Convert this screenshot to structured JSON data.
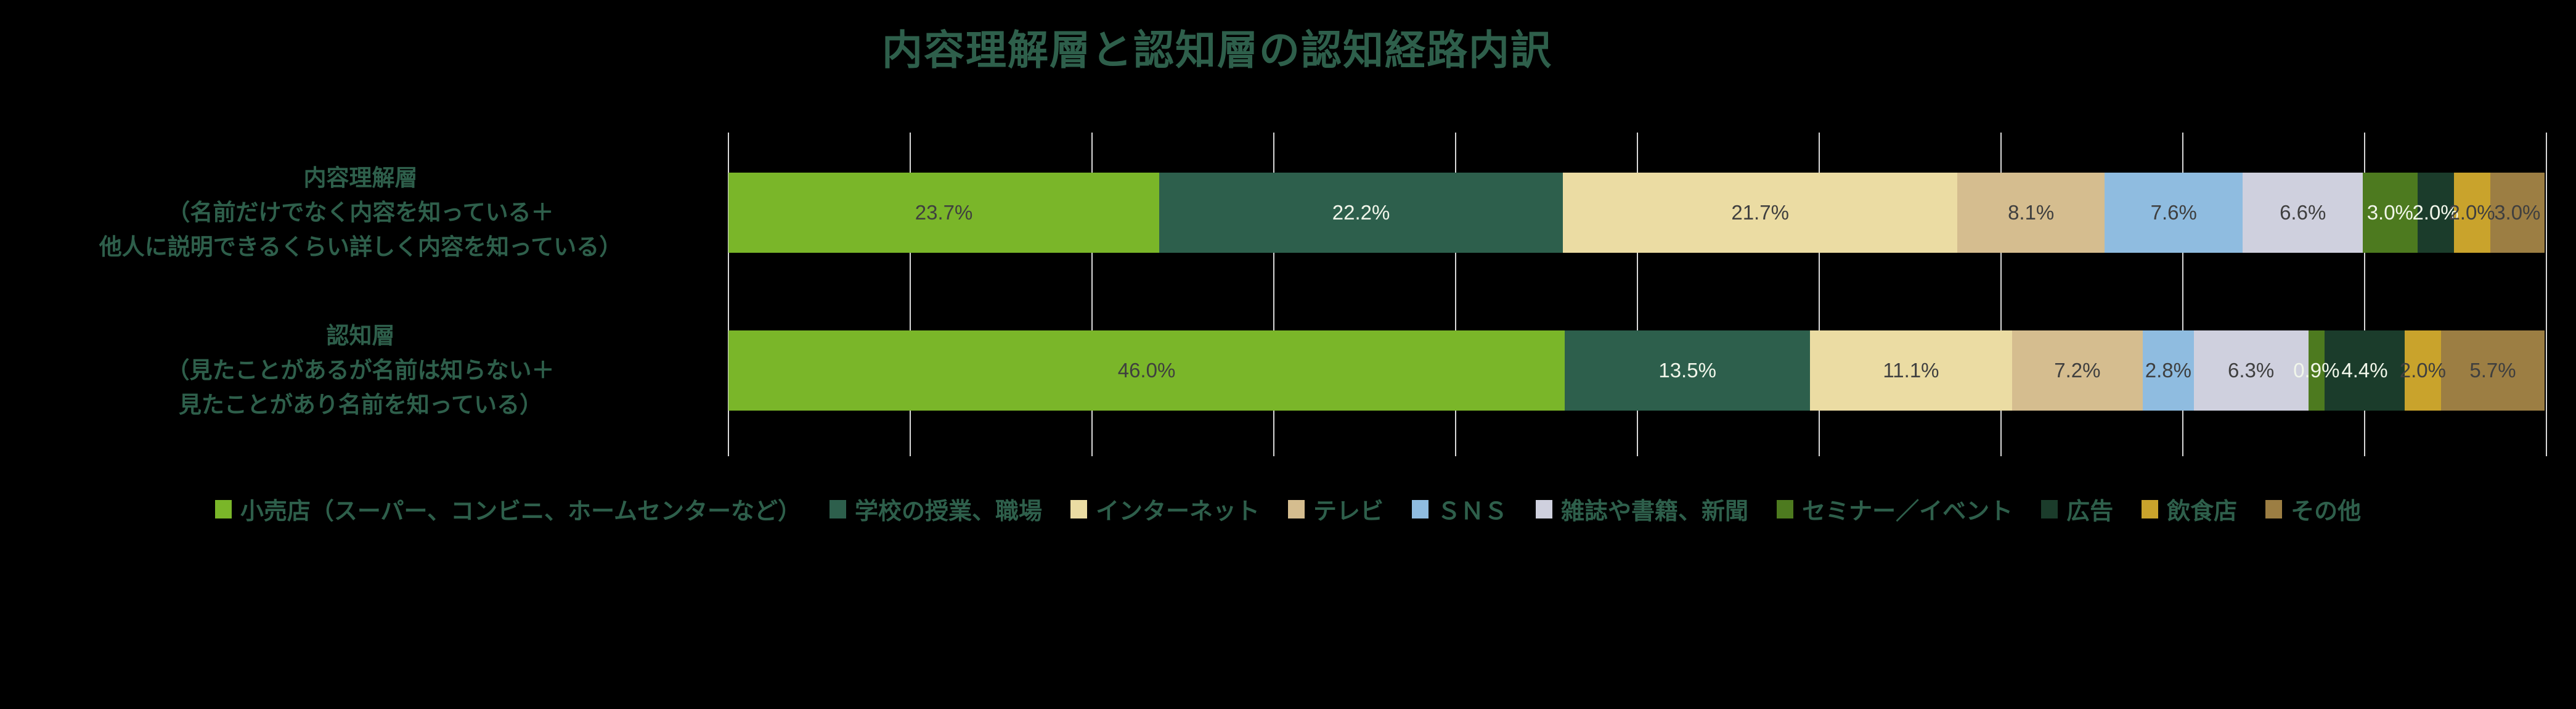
{
  "title": "内容理解層と認知層の認知経路内訳",
  "colors": {
    "background": "#000000",
    "title_text": "#2E5F4B",
    "category_text": "#2E5F4B",
    "legend_text": "#2E5F4B",
    "gridline": "#D9D9D9",
    "label_dark": "#3F3F3F",
    "label_light": "#F1F6EA"
  },
  "chart_data": {
    "type": "bar",
    "orientation": "horizontal",
    "stacked": true,
    "unit": "%",
    "xlim": [
      0,
      100
    ],
    "gridline_step": 10,
    "grid": true,
    "axis_tick_labels_visible": false,
    "legend_position": "bottom",
    "title": "内容理解層と認知層の認知経路内訳",
    "categories": [
      {
        "name": "内容理解層（名前だけでなく内容を知っている＋他人に説明できるくらい詳しく内容を知っている）",
        "lines": [
          "内容理解層",
          "（名前だけでなく内容を知っている＋",
          "他人に説明できるくらい詳しく内容を知っている）"
        ]
      },
      {
        "name": "認知層（見たことがあるが名前は知らない＋見たことがあり名前を知っている）",
        "lines": [
          "認知層",
          "（見たことがあるが名前は知らない＋",
          "見たことがあり名前を知っている）"
        ]
      }
    ],
    "series": [
      {
        "name": "小売店（スーパー、コンビニ、ホームセンターなど）",
        "color": "#7AB629",
        "label_color": "dark",
        "values": [
          23.7,
          46.0
        ]
      },
      {
        "name": "学校の授業、職場",
        "color": "#2D5F4C",
        "label_color": "light",
        "values": [
          22.2,
          13.5
        ]
      },
      {
        "name": "インターネット",
        "color": "#EBDCA3",
        "label_color": "dark",
        "values": [
          21.7,
          11.1
        ]
      },
      {
        "name": "テレビ",
        "color": "#D5BD8F",
        "label_color": "dark",
        "values": [
          8.1,
          7.2
        ]
      },
      {
        "name": "ＳＮＳ",
        "color": "#8FBCE0",
        "label_color": "dark",
        "values": [
          7.6,
          2.8
        ]
      },
      {
        "name": "雑誌や書籍、新聞",
        "color": "#CFD0DE",
        "label_color": "dark",
        "values": [
          6.6,
          6.3
        ]
      },
      {
        "name": "セミナー／イベント",
        "color": "#4D7A1F",
        "label_color": "light",
        "values": [
          3.0,
          0.9
        ]
      },
      {
        "name": "広告",
        "color": "#1B3C2B",
        "label_color": "light",
        "values": [
          2.0,
          4.4
        ]
      },
      {
        "name": "飲食店",
        "color": "#C9A32C",
        "label_color": "dark",
        "values": [
          2.0,
          2.0
        ]
      },
      {
        "name": "その他",
        "color": "#9C7E43",
        "label_color": "dark",
        "values": [
          3.0,
          5.7
        ]
      }
    ]
  }
}
